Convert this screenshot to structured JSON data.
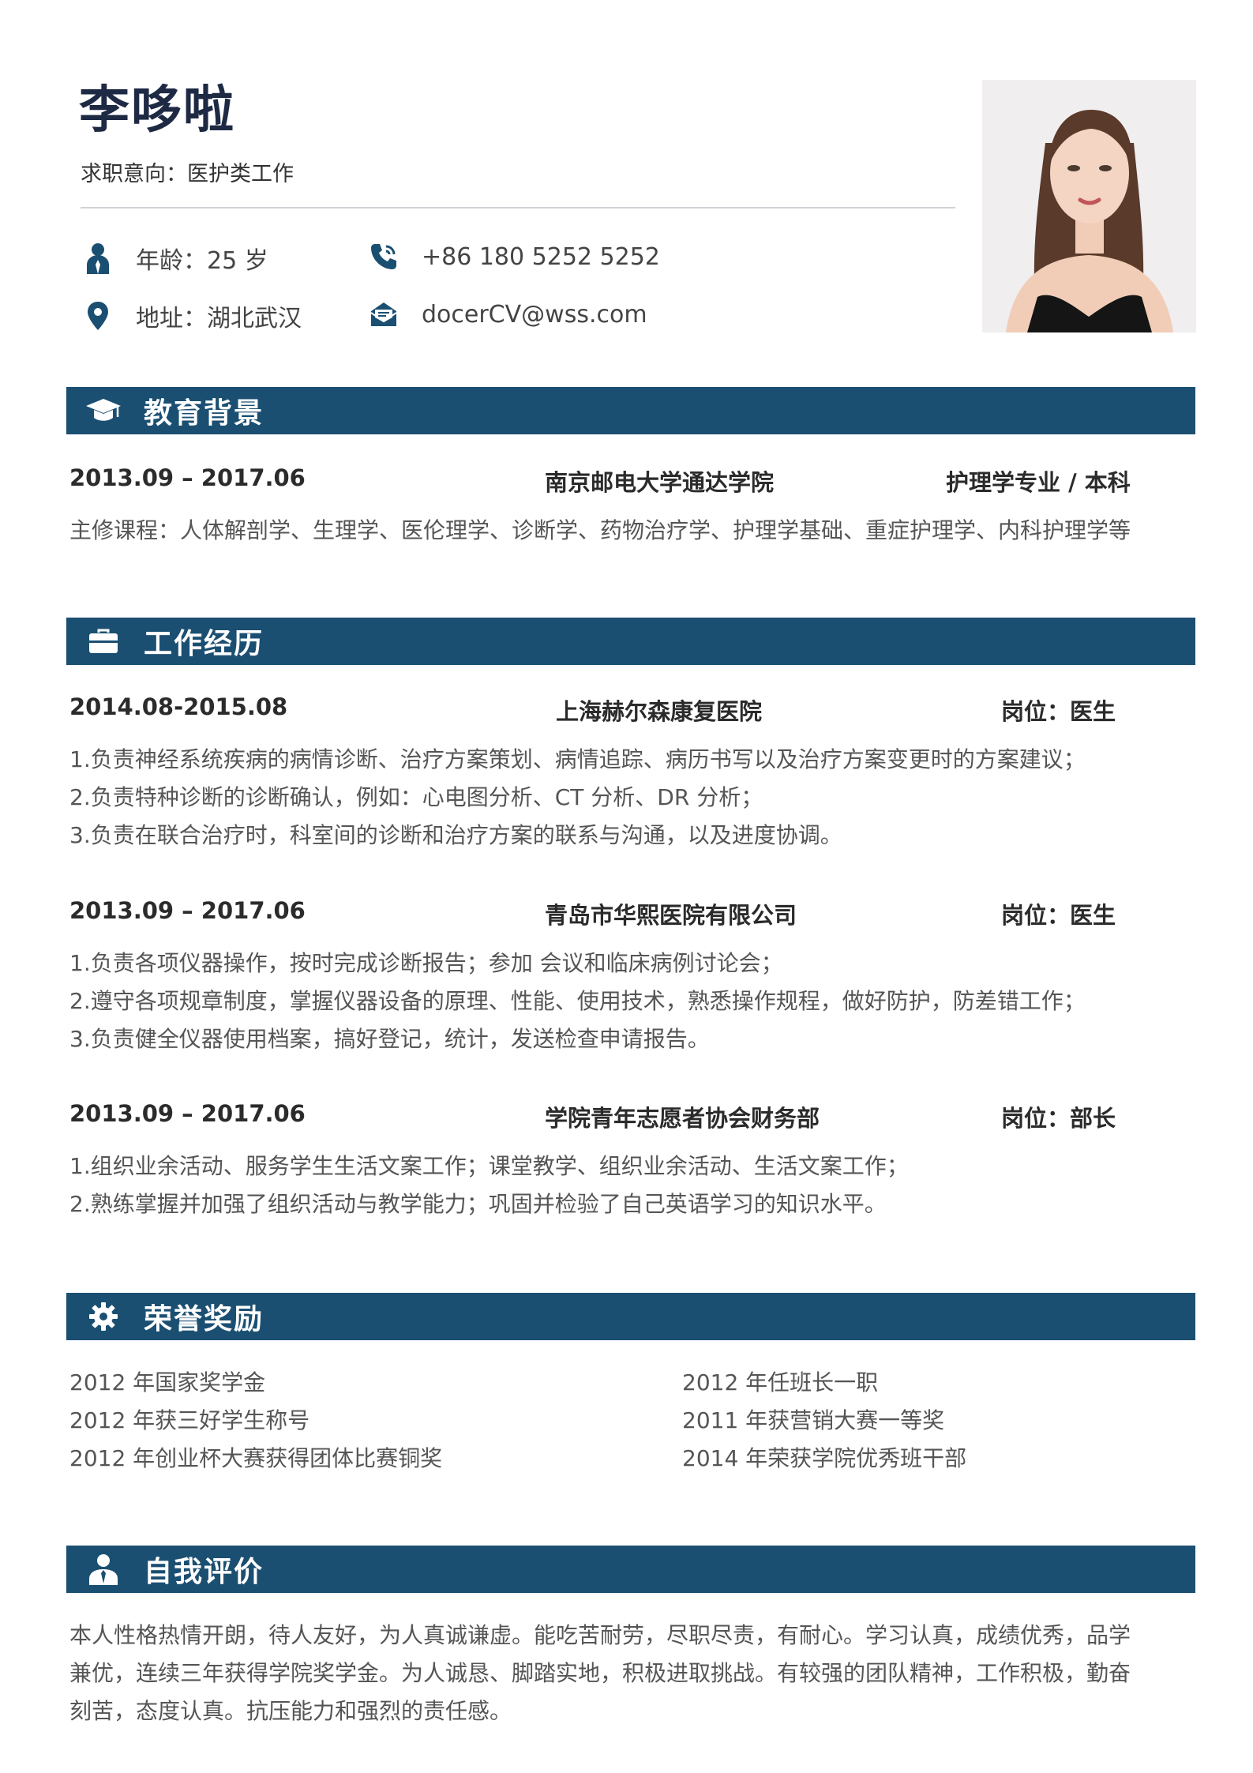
{
  "profile": {
    "name": "李哆啦",
    "intention": "求职意向：医护类工作",
    "age": "年龄：25 岁",
    "phone": "+86 180 5252 5252",
    "address": "地址：湖北武汉",
    "email": "docerCV@wss.com"
  },
  "education": {
    "title": "教育背景",
    "period": "2013.09 – 2017.06",
    "school": "南京邮电大学通达学院",
    "major": "护理学专业 / 本科",
    "courses": "主修课程：人体解剖学、生理学、医伦理学、诊断学、药物治疗学、护理学基础、重症护理学、内科护理学等"
  },
  "work": {
    "title": "工作经历",
    "items": [
      {
        "period": "2014.08-2015.08",
        "org": "上海赫尔森康复医院",
        "role": "岗位：医生",
        "lines": [
          "1.负责神经系统疾病的病情诊断、治疗方案策划、病情追踪、病历书写以及治疗方案变更时的方案建议；",
          "2.负责特种诊断的诊断确认，例如：心电图分析、CT 分析、DR 分析；",
          "3.负责在联合治疗时，科室间的诊断和治疗方案的联系与沟通，以及进度协调。"
        ]
      },
      {
        "period": "2013.09 – 2017.06",
        "org": "青岛市华熙医院有限公司",
        "role": "岗位：医生",
        "lines": [
          "1.负责各项仪器操作，按时完成诊断报告；参加 会议和临床病例讨论会；",
          "2.遵守各项规章制度，掌握仪器设备的原理、性能、使用技术，熟悉操作规程，做好防护，防差错工作；",
          "3.负责健全仪器使用档案，搞好登记，统计，发送检查申请报告。"
        ]
      },
      {
        "period": "2013.09 – 2017.06",
        "org": "学院青年志愿者协会财务部",
        "role": "岗位：部长",
        "lines": [
          "1.组织业余活动、服务学生生活文案工作；课堂教学、组织业余活动、生活文案工作；",
          "2.熟练掌握并加强了组织活动与教学能力；巩固并检验了自己英语学习的知识水平。"
        ]
      }
    ]
  },
  "honors": {
    "title": "荣誉奖励",
    "left": [
      "2012 年国家奖学金",
      "2012 年获三好学生称号",
      "2012 年创业杯大赛获得团体比赛铜奖"
    ],
    "right": [
      "2012 年任班长一职",
      "2011 年获营销大赛一等奖",
      "2014 年荣获学院优秀班干部"
    ]
  },
  "self": {
    "title": "自我评价",
    "lines": [
      "本人性格热情开朗，待人友好，为人真诚谦虚。能吃苦耐劳，尽职尽责，有耐心。学习认真，成绩优秀，品学",
      "兼优，连续三年获得学院奖学金。为人诚恳、脚踏实地，积极进取挑战。有较强的团队精神，工作积极，勤奋",
      "刻苦，态度认真。抗压能力和强烈的责任感。"
    ]
  },
  "colors": {
    "accent": "#1b4f72",
    "name": "#1e2a44"
  },
  "icons": {
    "age": "person-icon",
    "phone": "phone-icon",
    "address": "location-pin-icon",
    "email": "mail-icon",
    "education": "graduation-cap-icon",
    "work": "briefcase-icon",
    "honors": "gear-icon",
    "self": "user-tie-icon"
  }
}
